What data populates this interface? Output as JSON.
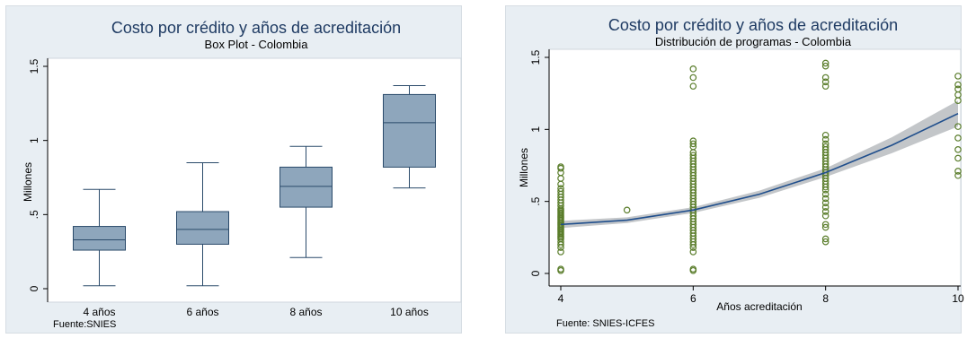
{
  "chart_data": [
    {
      "type": "box",
      "title": "Costo por crédito y años de acreditación",
      "subtitle": "Box Plot - Colombia",
      "ylabel": "Millones",
      "xlabel": "",
      "note": "Fuente:SNIES",
      "ylim": [
        0,
        1.5
      ],
      "yticks": [
        0,
        0.5,
        1,
        1.5
      ],
      "ytick_labels": [
        "0",
        ".5",
        "1",
        "1.5"
      ],
      "categories": [
        "4 años",
        "6 años",
        "8 años",
        "10 años"
      ],
      "boxes": [
        {
          "whisker_low": 0.02,
          "q1": 0.26,
          "median": 0.33,
          "q3": 0.42,
          "whisker_high": 0.67
        },
        {
          "whisker_low": 0.02,
          "q1": 0.3,
          "median": 0.4,
          "q3": 0.52,
          "whisker_high": 0.85
        },
        {
          "whisker_low": 0.21,
          "q1": 0.55,
          "median": 0.69,
          "q3": 0.82,
          "whisker_high": 0.96
        },
        {
          "whisker_low": 0.68,
          "q1": 0.82,
          "median": 1.12,
          "q3": 1.31,
          "whisker_high": 1.37
        }
      ],
      "colors": {
        "box": "#8ea6bc",
        "stroke": "#2a4a6a",
        "plot_bg": "#ffffff",
        "panel_bg": "#e8eef3",
        "title": "#1f3b63"
      }
    },
    {
      "type": "scatter",
      "title": "Costo por crédito y años de acreditación",
      "subtitle": "Distribución de programas - Colombia",
      "ylabel": "Millones",
      "xlabel": "Años acreditación",
      "note": "Fuente: SNIES-ICFES",
      "xlim": [
        4,
        10
      ],
      "ylim": [
        0,
        1.5
      ],
      "xticks": [
        4,
        6,
        8,
        10
      ],
      "yticks": [
        0,
        0.5,
        1,
        1.5
      ],
      "ytick_labels": [
        "0",
        ".5",
        "1",
        "1.5"
      ],
      "points": [
        [
          4,
          0.02
        ],
        [
          4,
          0.03
        ],
        [
          4,
          0.15
        ],
        [
          4,
          0.18
        ],
        [
          4,
          0.2
        ],
        [
          4,
          0.22
        ],
        [
          4,
          0.24
        ],
        [
          4,
          0.25
        ],
        [
          4,
          0.26
        ],
        [
          4,
          0.27
        ],
        [
          4,
          0.28
        ],
        [
          4,
          0.29
        ],
        [
          4,
          0.3
        ],
        [
          4,
          0.31
        ],
        [
          4,
          0.32
        ],
        [
          4,
          0.33
        ],
        [
          4,
          0.34
        ],
        [
          4,
          0.35
        ],
        [
          4,
          0.36
        ],
        [
          4,
          0.37
        ],
        [
          4,
          0.38
        ],
        [
          4,
          0.39
        ],
        [
          4,
          0.4
        ],
        [
          4,
          0.41
        ],
        [
          4,
          0.42
        ],
        [
          4,
          0.43
        ],
        [
          4,
          0.44
        ],
        [
          4,
          0.45
        ],
        [
          4,
          0.47
        ],
        [
          4,
          0.49
        ],
        [
          4,
          0.51
        ],
        [
          4,
          0.53
        ],
        [
          4,
          0.55
        ],
        [
          4,
          0.57
        ],
        [
          4,
          0.59
        ],
        [
          4,
          0.62
        ],
        [
          4,
          0.66
        ],
        [
          4,
          0.7
        ],
        [
          4,
          0.73
        ],
        [
          4,
          0.74
        ],
        [
          5,
          0.44
        ],
        [
          6,
          0.02
        ],
        [
          6,
          0.03
        ],
        [
          6,
          0.15
        ],
        [
          6,
          0.18
        ],
        [
          6,
          0.2
        ],
        [
          6,
          0.22
        ],
        [
          6,
          0.24
        ],
        [
          6,
          0.26
        ],
        [
          6,
          0.28
        ],
        [
          6,
          0.3
        ],
        [
          6,
          0.32
        ],
        [
          6,
          0.34
        ],
        [
          6,
          0.36
        ],
        [
          6,
          0.38
        ],
        [
          6,
          0.4
        ],
        [
          6,
          0.42
        ],
        [
          6,
          0.44
        ],
        [
          6,
          0.46
        ],
        [
          6,
          0.48
        ],
        [
          6,
          0.5
        ],
        [
          6,
          0.52
        ],
        [
          6,
          0.54
        ],
        [
          6,
          0.56
        ],
        [
          6,
          0.58
        ],
        [
          6,
          0.6
        ],
        [
          6,
          0.62
        ],
        [
          6,
          0.64
        ],
        [
          6,
          0.66
        ],
        [
          6,
          0.68
        ],
        [
          6,
          0.7
        ],
        [
          6,
          0.72
        ],
        [
          6,
          0.74
        ],
        [
          6,
          0.76
        ],
        [
          6,
          0.78
        ],
        [
          6,
          0.8
        ],
        [
          6,
          0.82
        ],
        [
          6,
          0.84
        ],
        [
          6,
          0.88
        ],
        [
          6,
          0.9
        ],
        [
          6,
          0.92
        ],
        [
          6,
          1.3
        ],
        [
          6,
          1.36
        ],
        [
          6,
          1.42
        ],
        [
          8,
          0.22
        ],
        [
          8,
          0.24
        ],
        [
          8,
          0.32
        ],
        [
          8,
          0.34
        ],
        [
          8,
          0.4
        ],
        [
          8,
          0.43
        ],
        [
          8,
          0.46
        ],
        [
          8,
          0.49
        ],
        [
          8,
          0.52
        ],
        [
          8,
          0.55
        ],
        [
          8,
          0.58
        ],
        [
          8,
          0.6
        ],
        [
          8,
          0.62
        ],
        [
          8,
          0.64
        ],
        [
          8,
          0.66
        ],
        [
          8,
          0.68
        ],
        [
          8,
          0.7
        ],
        [
          8,
          0.72
        ],
        [
          8,
          0.74
        ],
        [
          8,
          0.76
        ],
        [
          8,
          0.78
        ],
        [
          8,
          0.8
        ],
        [
          8,
          0.82
        ],
        [
          8,
          0.84
        ],
        [
          8,
          0.86
        ],
        [
          8,
          0.88
        ],
        [
          8,
          0.9
        ],
        [
          8,
          0.93
        ],
        [
          8,
          0.96
        ],
        [
          8,
          1.3
        ],
        [
          8,
          1.33
        ],
        [
          8,
          1.36
        ],
        [
          8,
          1.44
        ],
        [
          8,
          1.46
        ],
        [
          10,
          0.68
        ],
        [
          10,
          0.71
        ],
        [
          10,
          0.8
        ],
        [
          10,
          0.86
        ],
        [
          10,
          0.94
        ],
        [
          10,
          1.02
        ],
        [
          10,
          1.2
        ],
        [
          10,
          1.24
        ],
        [
          10,
          1.28
        ],
        [
          10,
          1.31
        ],
        [
          10,
          1.37
        ]
      ],
      "fit": {
        "x": [
          4,
          5,
          6,
          7,
          8,
          9,
          10
        ],
        "y": [
          0.34,
          0.37,
          0.44,
          0.55,
          0.7,
          0.89,
          1.11
        ],
        "ci_halfwidth": [
          0.025,
          0.02,
          0.02,
          0.025,
          0.03,
          0.055,
          0.09
        ]
      },
      "colors": {
        "marker": "#5a7d2b",
        "fit_line": "#1f4e8c",
        "ci_band": "#b8bcc0",
        "plot_bg": "#ffffff",
        "panel_bg": "#e8eef3",
        "title": "#1f3b63"
      }
    }
  ]
}
